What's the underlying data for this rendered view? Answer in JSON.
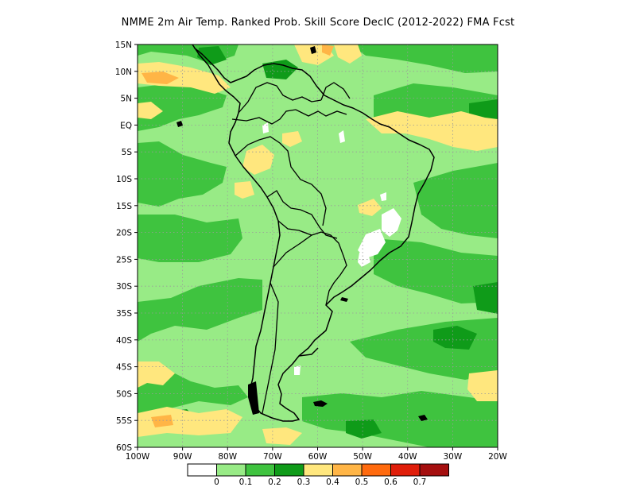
{
  "title": "NMME  2m Air Temp. Ranked Prob. Skill Score DecIC (2012-2022) FMA Fcst",
  "map": {
    "lon_range": [
      -100,
      -20
    ],
    "lat_range": [
      -60,
      15
    ],
    "lat_ticks": [
      {
        "value": 15,
        "label": "15N"
      },
      {
        "value": 10,
        "label": "10N"
      },
      {
        "value": 5,
        "label": "5N"
      },
      {
        "value": 0,
        "label": "EQ"
      },
      {
        "value": -5,
        "label": "5S"
      },
      {
        "value": -10,
        "label": "10S"
      },
      {
        "value": -15,
        "label": "15S"
      },
      {
        "value": -20,
        "label": "20S"
      },
      {
        "value": -25,
        "label": "25S"
      },
      {
        "value": -30,
        "label": "30S"
      },
      {
        "value": -35,
        "label": "35S"
      },
      {
        "value": -40,
        "label": "40S"
      },
      {
        "value": -45,
        "label": "45S"
      },
      {
        "value": -50,
        "label": "50S"
      },
      {
        "value": -55,
        "label": "55S"
      },
      {
        "value": -60,
        "label": "60S"
      }
    ],
    "lon_ticks": [
      {
        "value": -100,
        "label": "100W"
      },
      {
        "value": -90,
        "label": "90W"
      },
      {
        "value": -80,
        "label": "80W"
      },
      {
        "value": -70,
        "label": "70W"
      },
      {
        "value": -60,
        "label": "60W"
      },
      {
        "value": -50,
        "label": "50W"
      },
      {
        "value": -40,
        "label": "40W"
      },
      {
        "value": -30,
        "label": "30W"
      },
      {
        "value": -20,
        "label": "20W"
      }
    ],
    "grid": true
  },
  "colorbar": {
    "colors": [
      "#ffffff",
      "#98eb86",
      "#3fc33f",
      "#0f9b19",
      "#ffe77e",
      "#ffb546",
      "#ff6a0e",
      "#e01e0a",
      "#a50f0f"
    ],
    "labels": [
      "0",
      "0.1",
      "0.2",
      "0.3",
      "0.4",
      "0.5",
      "0.6",
      "0.7"
    ]
  }
}
